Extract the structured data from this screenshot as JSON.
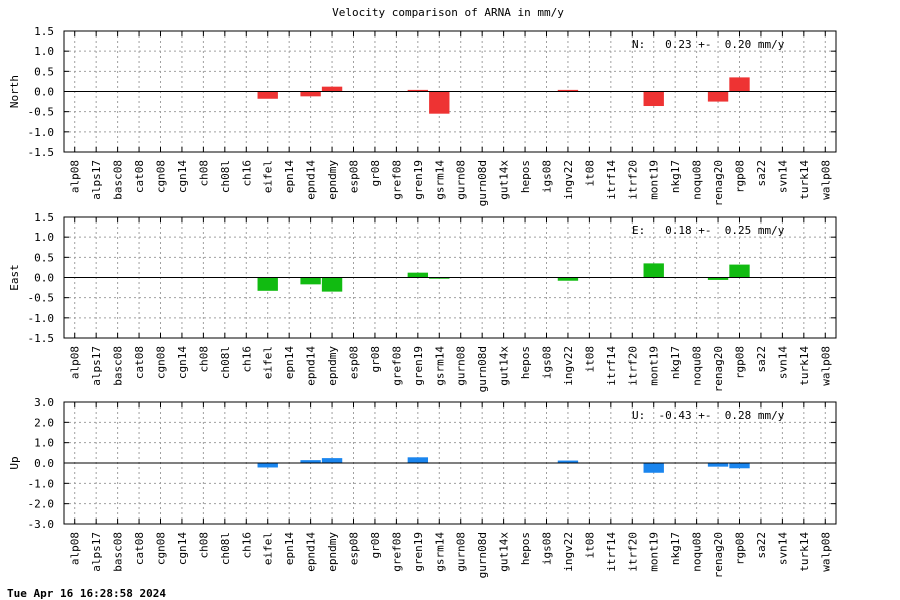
{
  "chart_data": [
    {
      "type": "bar",
      "title": "Velocity comparison of ARNA in mm/y",
      "ylabel": "North",
      "ylim": [
        -1.5,
        1.5
      ],
      "yticks": [
        "1.5",
        "1.0",
        "0.5",
        "0.0",
        "-0.5",
        "-1.0",
        "-1.5"
      ],
      "grid": true,
      "annotation": "N:   0.23 +-  0.20 mm/y",
      "color": "#ee3333",
      "categories": [
        "alp08",
        "alps17",
        "basc08",
        "cat08",
        "cgn08",
        "cgn14",
        "ch08",
        "ch08l",
        "ch16",
        "eifel",
        "epn14",
        "epnd14",
        "epndmy",
        "esp08",
        "gr08",
        "gref08",
        "gren19",
        "gsrm14",
        "gurn08",
        "gurn08d",
        "gut14x",
        "hepos",
        "igs08",
        "ingv22",
        "it08",
        "itrf14",
        "itrf20",
        "mont19",
        "nkg17",
        "noqu08",
        "renag20",
        "rgp08",
        "sa22",
        "svn14",
        "turk14",
        "walp08"
      ],
      "values": [
        0,
        0,
        0,
        0,
        0,
        0,
        0,
        0,
        0,
        -0.18,
        0,
        -0.12,
        0.12,
        0,
        0,
        0,
        0.04,
        -0.55,
        0,
        0,
        0,
        0,
        0,
        0.04,
        0,
        0,
        0,
        -0.36,
        0,
        0,
        -0.25,
        0.35,
        0,
        0,
        0,
        0
      ]
    },
    {
      "type": "bar",
      "title": "",
      "ylabel": "East",
      "ylim": [
        -1.5,
        1.5
      ],
      "yticks": [
        "1.5",
        "1.0",
        "0.5",
        "0.0",
        "-0.5",
        "-1.0",
        "-1.5"
      ],
      "grid": true,
      "annotation": "E:   0.18 +-  0.25 mm/y",
      "color": "#11bb11",
      "categories": [
        "alp08",
        "alps17",
        "basc08",
        "cat08",
        "cgn08",
        "cgn14",
        "ch08",
        "ch08l",
        "ch16",
        "eifel",
        "epn14",
        "epnd14",
        "epndmy",
        "esp08",
        "gr08",
        "gref08",
        "gren19",
        "gsrm14",
        "gurn08",
        "gurn08d",
        "gut14x",
        "hepos",
        "igs08",
        "ingv22",
        "it08",
        "itrf14",
        "itrf20",
        "mont19",
        "nkg17",
        "noqu08",
        "renag20",
        "rgp08",
        "sa22",
        "svn14",
        "turk14",
        "walp08"
      ],
      "values": [
        0,
        0,
        0,
        0,
        0,
        0,
        0,
        0,
        0,
        -0.33,
        0,
        -0.17,
        -0.35,
        0,
        0,
        0,
        0.12,
        -0.03,
        0,
        0,
        0,
        0,
        0,
        -0.08,
        0,
        0,
        0,
        0.35,
        0,
        0,
        -0.06,
        0.32,
        0,
        0,
        0,
        0
      ]
    },
    {
      "type": "bar",
      "title": "",
      "ylabel": "Up",
      "ylim": [
        -3.0,
        3.0
      ],
      "yticks": [
        "3.0",
        "2.0",
        "1.0",
        "0.0",
        "-1.0",
        "-2.0",
        "-3.0"
      ],
      "grid": true,
      "annotation": "U:  -0.43 +-  0.28 mm/y",
      "color": "#1a85ee",
      "categories": [
        "alp08",
        "alps17",
        "basc08",
        "cat08",
        "cgn08",
        "cgn14",
        "ch08",
        "ch08l",
        "ch16",
        "eifel",
        "epn14",
        "epnd14",
        "epndmy",
        "esp08",
        "gr08",
        "gref08",
        "gren19",
        "gsrm14",
        "gurn08",
        "gurn08d",
        "gut14x",
        "hepos",
        "igs08",
        "ingv22",
        "it08",
        "itrf14",
        "itrf20",
        "mont19",
        "nkg17",
        "noqu08",
        "renag20",
        "rgp08",
        "sa22",
        "svn14",
        "turk14",
        "walp08"
      ],
      "values": [
        0,
        0,
        0,
        0,
        0,
        0,
        0,
        0,
        0,
        -0.22,
        0,
        0.14,
        0.24,
        0,
        0,
        0,
        0.28,
        0,
        0,
        0,
        0,
        0,
        0,
        0.12,
        0,
        0,
        0,
        -0.48,
        0,
        0,
        -0.18,
        -0.26,
        0,
        0,
        0,
        0
      ]
    }
  ],
  "footer": {
    "timestamp": "Tue Apr 16 16:28:58 2024"
  }
}
